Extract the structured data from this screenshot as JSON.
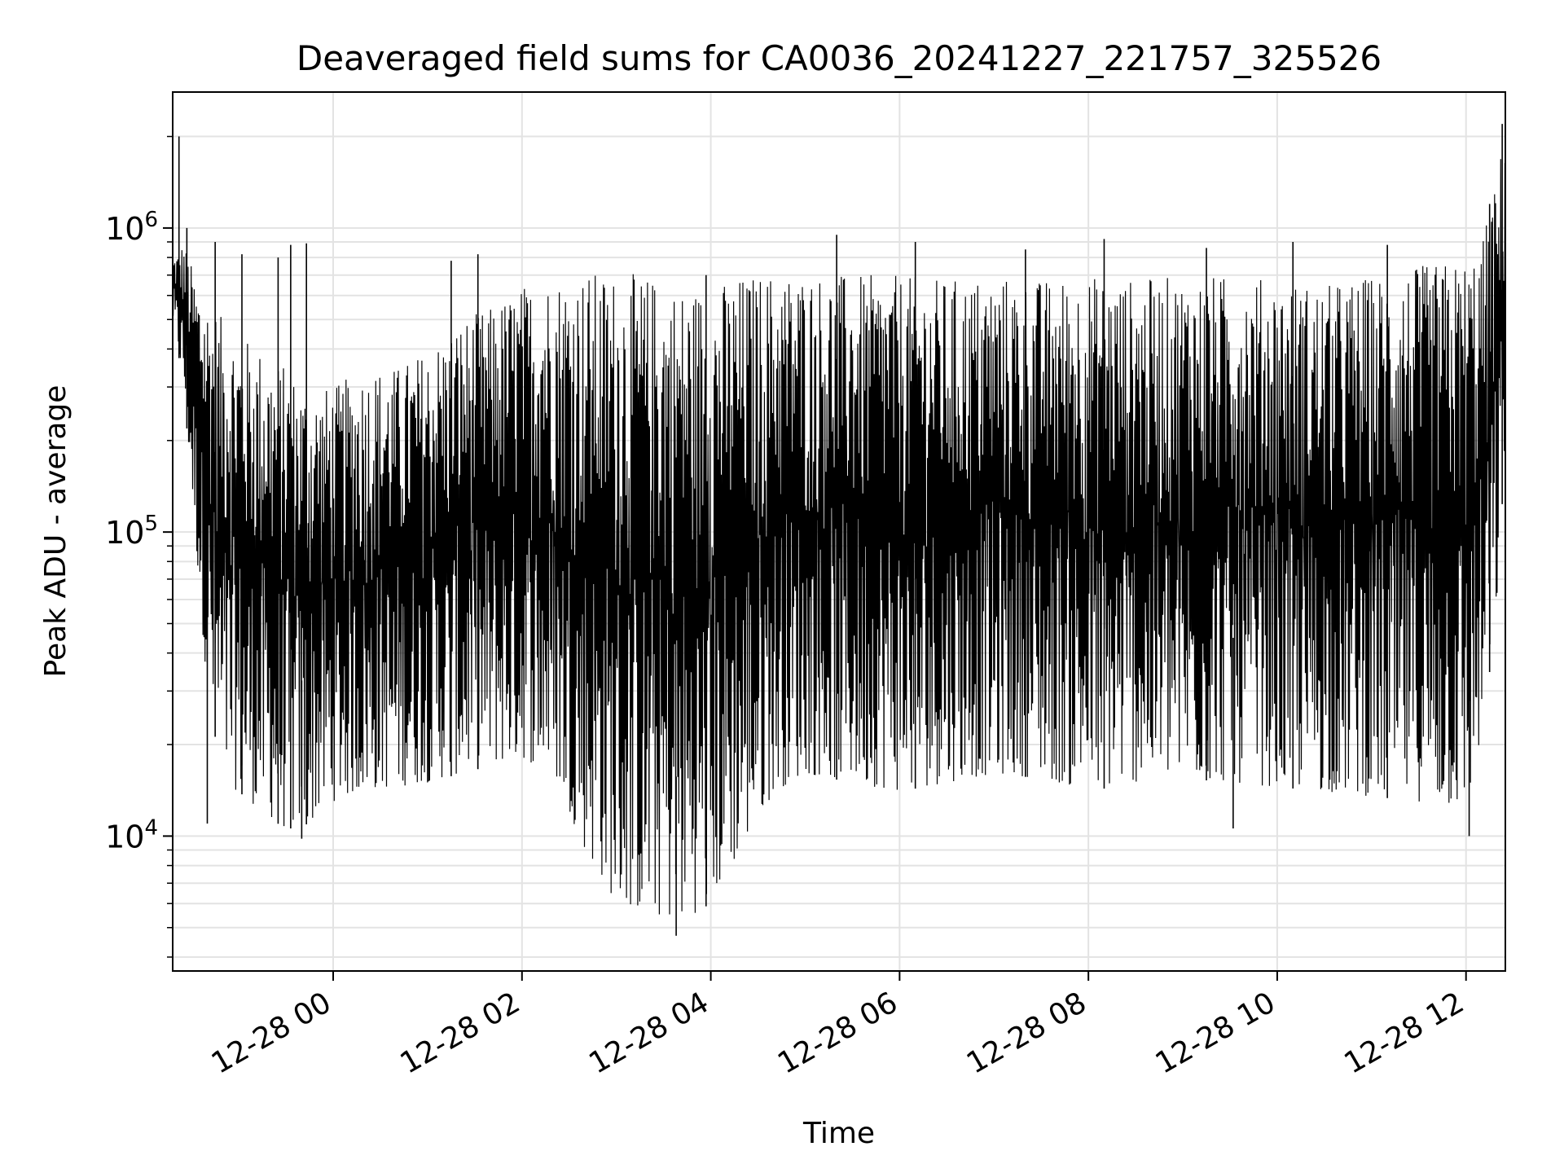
{
  "chart_data": {
    "type": "line",
    "title": "Deaveraged field sums for CA0036_20241227_221757_325526",
    "xlabel": "Time",
    "ylabel": "Peak ADU - average",
    "y_scale": "log",
    "ylim": [
      3600,
      2800000
    ],
    "xlim": [
      "2024-12-27 22:18",
      "2024-12-28 12:25"
    ],
    "grid": true,
    "line_color": "#000000",
    "x_ticks": [
      {
        "value": "2024-12-28 00:00",
        "label": "12-28 00"
      },
      {
        "value": "2024-12-28 02:00",
        "label": "12-28 02"
      },
      {
        "value": "2024-12-28 04:00",
        "label": "12-28 04"
      },
      {
        "value": "2024-12-28 06:00",
        "label": "12-28 06"
      },
      {
        "value": "2024-12-28 08:00",
        "label": "12-28 08"
      },
      {
        "value": "2024-12-28 10:00",
        "label": "12-28 10"
      },
      {
        "value": "2024-12-28 12:00",
        "label": "12-28 12"
      }
    ],
    "y_ticks": [
      {
        "value": 10000,
        "base": "10",
        "exp": "4"
      },
      {
        "value": 100000,
        "base": "10",
        "exp": "5"
      },
      {
        "value": 1000000,
        "base": "10",
        "exp": "6"
      }
    ],
    "series": [
      {
        "x": [
          "2024-12-27 22:18",
          "2024-12-27 22:25",
          "2024-12-27 22:32",
          "2024-12-27 22:40",
          "2024-12-27 22:50",
          "2024-12-27 23:00",
          "2024-12-27 23:15",
          "2024-12-27 23:30",
          "2024-12-27 23:45",
          "2024-12-28 00:00",
          "2024-12-28 00:20",
          "2024-12-28 00:40",
          "2024-12-28 01:00",
          "2024-12-28 01:20",
          "2024-12-28 01:40",
          "2024-12-28 02:00",
          "2024-12-28 02:20",
          "2024-12-28 02:40",
          "2024-12-28 03:00",
          "2024-12-28 03:20",
          "2024-12-28 03:40",
          "2024-12-28 04:00",
          "2024-12-28 04:20",
          "2024-12-28 04:40",
          "2024-12-28 05:00",
          "2024-12-28 05:30",
          "2024-12-28 06:00",
          "2024-12-28 06:30",
          "2024-12-28 07:00",
          "2024-12-28 07:30",
          "2024-12-28 08:00",
          "2024-12-28 08:30",
          "2024-12-28 09:00",
          "2024-12-28 09:30",
          "2024-12-28 10:00",
          "2024-12-28 10:30",
          "2024-12-28 11:00",
          "2024-12-28 11:30",
          "2024-12-28 12:00",
          "2024-12-28 12:10",
          "2024-12-28 12:20",
          "2024-12-28 12:25"
        ],
        "low": [
          500000,
          300000,
          100000,
          30000,
          15000,
          14000,
          12000,
          10500,
          11000,
          13000,
          14000,
          14500,
          15000,
          16000,
          17000,
          18000,
          16000,
          9000,
          6000,
          5500,
          5200,
          6000,
          9000,
          14000,
          16000,
          15000,
          14000,
          15000,
          16000,
          15500,
          14000,
          15000,
          15500,
          15000,
          14500,
          14000,
          13500,
          13000,
          12000,
          20000,
          60000,
          200000
        ],
        "high": [
          800000,
          900000,
          700000,
          600000,
          500000,
          450000,
          400000,
          350000,
          300000,
          300000,
          350000,
          350000,
          400000,
          500000,
          550000,
          650000,
          700000,
          720000,
          720000,
          700000,
          650000,
          650000,
          700000,
          720000,
          720000,
          700000,
          700000,
          680000,
          700000,
          680000,
          700000,
          680000,
          700000,
          700000,
          680000,
          650000,
          700000,
          750000,
          800000,
          900000,
          1500000,
          2200000
        ],
        "spikes": [
          {
            "x": "2024-12-27 22:22",
            "y": 2000000
          },
          {
            "x": "2024-12-27 22:27",
            "y": 1000000
          },
          {
            "x": "2024-12-27 22:45",
            "y": 900000
          },
          {
            "x": "2024-12-27 23:02",
            "y": 820000
          },
          {
            "x": "2024-12-27 23:25",
            "y": 800000
          },
          {
            "x": "2024-12-27 23:33",
            "y": 880000
          },
          {
            "x": "2024-12-27 23:43",
            "y": 890000
          },
          {
            "x": "2024-12-28 01:15",
            "y": 780000
          },
          {
            "x": "2024-12-28 01:32",
            "y": 820000
          },
          {
            "x": "2024-12-28 03:57",
            "y": 700000
          },
          {
            "x": "2024-12-28 05:20",
            "y": 950000
          },
          {
            "x": "2024-12-28 06:10",
            "y": 900000
          },
          {
            "x": "2024-12-28 07:20",
            "y": 850000
          },
          {
            "x": "2024-12-28 08:10",
            "y": 920000
          },
          {
            "x": "2024-12-28 09:15",
            "y": 860000
          },
          {
            "x": "2024-12-28 10:10",
            "y": 900000
          },
          {
            "x": "2024-12-28 11:10",
            "y": 880000
          },
          {
            "x": "2024-12-28 12:15",
            "y": 1200000
          },
          {
            "x": "2024-12-28 12:23",
            "y": 2200000
          }
        ],
        "dips": [
          {
            "x": "2024-12-27 22:40",
            "y": 11000
          },
          {
            "x": "2024-12-27 23:40",
            "y": 9800
          },
          {
            "x": "2024-12-28 03:38",
            "y": 4700
          },
          {
            "x": "2024-12-28 09:32",
            "y": 10600
          },
          {
            "x": "2024-12-28 12:02",
            "y": 10000
          }
        ]
      }
    ]
  }
}
